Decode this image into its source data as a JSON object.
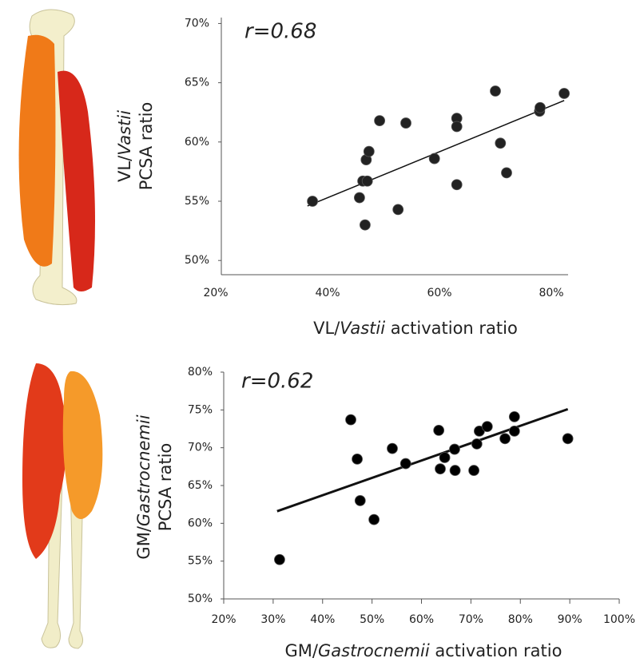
{
  "chart_data": [
    {
      "type": "scatter",
      "annotation": "r=0.68",
      "ylabel": {
        "line1": [
          "VL/",
          "Vastii"
        ],
        "line2": "PCSA ratio"
      },
      "xlabel": [
        "VL/",
        "Vastii",
        " activation ratio"
      ],
      "color": "#222222",
      "x": [
        37.3,
        45.7,
        49.3,
        46.9,
        47.4,
        46.3,
        47.1,
        52.6,
        46.7,
        54.0,
        59.1,
        63.1,
        63.1,
        63.1,
        70.0,
        70.9,
        72.0,
        77.9,
        78.0,
        82.3
      ],
      "values": [
        55.0,
        55.3,
        61.8,
        58.5,
        59.2,
        56.7,
        56.7,
        54.3,
        53.0,
        61.6,
        58.6,
        62.0,
        61.3,
        56.4,
        64.3,
        59.9,
        57.4,
        62.6,
        62.9,
        64.1
      ],
      "trendline": {
        "x": [
          36.4,
          82.3
        ],
        "y": [
          54.6,
          63.5
        ],
        "width": 1.5
      },
      "xlim": [
        21,
        83
      ],
      "ylim": [
        48.8,
        70.5
      ],
      "xticks": [
        {
          "value": 20,
          "label": "20%"
        },
        {
          "value": 40,
          "label": "40%"
        },
        {
          "value": 60,
          "label": "60%"
        },
        {
          "value": 80,
          "label": "80%"
        }
      ],
      "yticks": [
        {
          "value": 50,
          "label": "50%"
        },
        {
          "value": 55,
          "label": "55%"
        },
        {
          "value": 60,
          "label": "60%"
        },
        {
          "value": 65,
          "label": "65%"
        },
        {
          "value": 70,
          "label": "70%"
        }
      ]
    },
    {
      "type": "scatter",
      "annotation": "r=0.62",
      "ylabel": {
        "line1": [
          "GM/",
          "Gastrocnemii"
        ],
        "line2": "PCSA ratio"
      },
      "xlabel": [
        "GM/",
        "Gastrocnemii",
        " activation ratio"
      ],
      "color": "#000000",
      "x": [
        31.3,
        45.7,
        47.0,
        47.6,
        50.4,
        54.1,
        56.8,
        63.5,
        63.8,
        64.7,
        66.7,
        66.8,
        71.7,
        73.3,
        71.2,
        70.6,
        76.9,
        78.8,
        78.8,
        89.6
      ],
      "values": [
        55.2,
        73.7,
        68.5,
        63.0,
        60.5,
        69.9,
        67.9,
        72.3,
        67.2,
        68.7,
        69.8,
        67.0,
        72.2,
        72.8,
        70.5,
        67.0,
        71.2,
        74.1,
        72.2,
        71.2
      ],
      "trendline": {
        "x": [
          30.8,
          89.6
        ],
        "y": [
          61.6,
          75.1
        ],
        "width": 3
      },
      "xlim": [
        20,
        100
      ],
      "ylim": [
        50,
        80
      ],
      "xticks": [
        {
          "value": 20,
          "label": "20%"
        },
        {
          "value": 30,
          "label": "30%"
        },
        {
          "value": 40,
          "label": "40%"
        },
        {
          "value": 50,
          "label": "50%"
        },
        {
          "value": 60,
          "label": "60%"
        },
        {
          "value": 70,
          "label": "70%"
        },
        {
          "value": 80,
          "label": "80%"
        },
        {
          "value": 90,
          "label": "90%"
        },
        {
          "value": 100,
          "label": "100%"
        }
      ],
      "yticks": [
        {
          "value": 50,
          "label": "50%"
        },
        {
          "value": 55,
          "label": "55%"
        },
        {
          "value": 60,
          "label": "60%"
        },
        {
          "value": 65,
          "label": "65%"
        },
        {
          "value": 70,
          "label": "70%"
        },
        {
          "value": 75,
          "label": "75%"
        },
        {
          "value": 80,
          "label": "80%"
        }
      ]
    }
  ]
}
